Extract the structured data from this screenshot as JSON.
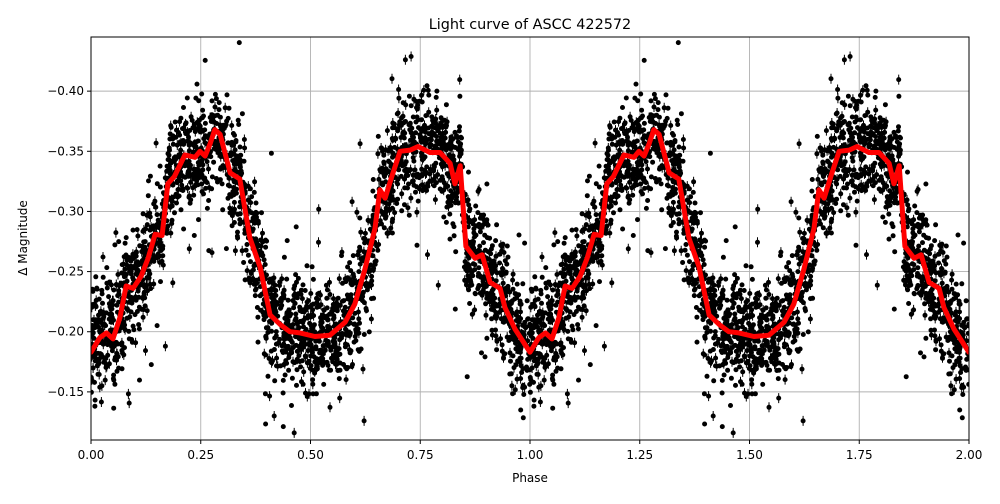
{
  "chart_data": {
    "type": "scatter",
    "title": "Light curve of ASCC 422572",
    "xlabel": "Phase",
    "ylabel": "Δ Magnitude",
    "xlim": [
      0.0,
      2.0
    ],
    "ylim": [
      -0.11,
      -0.445
    ],
    "y_inverted": true,
    "grid": true,
    "legend": null,
    "x_ticks": [
      "0.00",
      "0.25",
      "0.50",
      "0.75",
      "1.00",
      "1.25",
      "1.50",
      "1.75",
      "2.00"
    ],
    "x_tick_values": [
      0.0,
      0.25,
      0.5,
      0.75,
      1.0,
      1.25,
      1.5,
      1.75,
      2.0
    ],
    "y_ticks": [
      "−0.40",
      "−0.35",
      "−0.30",
      "−0.25",
      "−0.20",
      "−0.15"
    ],
    "y_tick_values": [
      -0.4,
      -0.35,
      -0.3,
      -0.25,
      -0.2,
      -0.15
    ],
    "series": [
      {
        "name": "observations",
        "kind": "scatter with error bars",
        "color": "#000000",
        "description": "Dense cloud of phase-folded photometric points (black dots with error bars), spread roughly ±0.06 mag around the binned curve, repeated over two cycles (phase 0–2)."
      },
      {
        "name": "binned mean",
        "kind": "line",
        "color": "#ff0000",
        "line_width": 5,
        "phase": [
          0.0,
          0.02,
          0.035,
          0.05,
          0.066,
          0.08,
          0.096,
          0.114,
          0.13,
          0.146,
          0.162,
          0.175,
          0.19,
          0.214,
          0.237,
          0.248,
          0.26,
          0.271,
          0.282,
          0.294,
          0.317,
          0.339,
          0.362,
          0.385,
          0.408,
          0.431,
          0.453,
          0.476,
          0.51,
          0.544,
          0.579,
          0.601,
          0.624,
          0.647,
          0.658,
          0.67,
          0.686,
          0.704,
          0.727,
          0.745,
          0.772,
          0.795,
          0.818,
          0.829,
          0.841,
          0.854,
          0.875,
          0.891,
          0.909,
          0.932,
          0.943,
          0.966,
          1.0
        ],
        "magnitude": [
          -0.183,
          -0.195,
          -0.199,
          -0.194,
          -0.212,
          -0.238,
          -0.236,
          -0.246,
          -0.261,
          -0.281,
          -0.28,
          -0.323,
          -0.329,
          -0.347,
          -0.345,
          -0.35,
          -0.346,
          -0.356,
          -0.368,
          -0.364,
          -0.332,
          -0.327,
          -0.278,
          -0.254,
          -0.214,
          -0.206,
          -0.2,
          -0.199,
          -0.196,
          -0.197,
          -0.208,
          -0.223,
          -0.252,
          -0.286,
          -0.318,
          -0.311,
          -0.33,
          -0.35,
          -0.351,
          -0.354,
          -0.349,
          -0.349,
          -0.34,
          -0.323,
          -0.338,
          -0.271,
          -0.261,
          -0.264,
          -0.241,
          -0.236,
          -0.22,
          -0.202,
          -0.183
        ],
        "repeats_with_period": 1.0
      }
    ]
  }
}
